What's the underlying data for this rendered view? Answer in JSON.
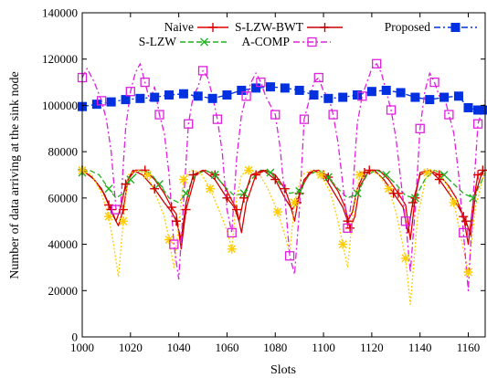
{
  "chart_data": {
    "type": "line",
    "xlabel": "Slots",
    "ylabel": "Number of data arriving at the sink node",
    "xlim": [
      1000,
      1167
    ],
    "ylim": [
      0,
      140000
    ],
    "xticks": [
      1000,
      1020,
      1040,
      1060,
      1080,
      1100,
      1120,
      1140,
      1160
    ],
    "xtick_labels": [
      "1000",
      "1020",
      "1040",
      "1060",
      "1080",
      "1100",
      "1120",
      "1140",
      "1160"
    ],
    "yticks": [
      0,
      20000,
      40000,
      60000,
      80000,
      100000,
      120000,
      140000
    ],
    "ytick_labels": [
      "0",
      "20000",
      "40000",
      "60000",
      "80000",
      "100000",
      "120000",
      "140000"
    ],
    "grid": false,
    "legend_position": "top",
    "series": [
      {
        "name": "Naive",
        "color": "#e00000",
        "marker": "plus",
        "dash": "solid",
        "x": [
          1000,
          1004,
          1008,
          1011,
          1013,
          1015,
          1017,
          1019,
          1022,
          1026,
          1030,
          1034,
          1037,
          1039,
          1041,
          1043,
          1047,
          1051,
          1055,
          1059,
          1062,
          1064,
          1066,
          1068,
          1072,
          1076,
          1080,
          1084,
          1086,
          1088,
          1090,
          1094,
          1098,
          1102,
          1106,
          1109,
          1111,
          1113,
          1115,
          1119,
          1123,
          1127,
          1131,
          1134,
          1136,
          1138,
          1140,
          1144,
          1148,
          1152,
          1155,
          1158,
          1160,
          1162,
          1164,
          1167
        ],
        "y": [
          72000,
          69000,
          64000,
          57000,
          52000,
          48000,
          55000,
          68000,
          72000,
          72000,
          68000,
          62000,
          56000,
          53000,
          38000,
          55000,
          70000,
          72000,
          70000,
          65000,
          59000,
          55000,
          45000,
          58000,
          70000,
          72000,
          70000,
          64000,
          58000,
          50000,
          62000,
          71000,
          72000,
          69000,
          63000,
          56000,
          47000,
          52000,
          65000,
          72000,
          72000,
          68000,
          62000,
          57000,
          42000,
          60000,
          71000,
          72000,
          70000,
          65000,
          60000,
          52000,
          40000,
          58000,
          70000,
          72000
        ]
      },
      {
        "name": "S-LZW",
        "color": "#20b020",
        "marker": "x",
        "dash": "dashed",
        "x": [
          1000,
          1003,
          1007,
          1011,
          1014,
          1017,
          1020,
          1024,
          1028,
          1032,
          1036,
          1040,
          1043,
          1047,
          1051,
          1055,
          1059,
          1063,
          1067,
          1070,
          1074,
          1078,
          1082,
          1086,
          1090,
          1094,
          1098,
          1102,
          1106,
          1110,
          1114,
          1118,
          1122,
          1126,
          1130,
          1134,
          1138,
          1142,
          1146,
          1150,
          1154,
          1158,
          1162,
          1165,
          1167
        ],
        "y": [
          71000,
          72000,
          70000,
          64000,
          60000,
          62000,
          68000,
          72000,
          71000,
          66000,
          60000,
          58000,
          62000,
          70000,
          72000,
          70000,
          65000,
          61000,
          62000,
          68000,
          72000,
          71000,
          66000,
          62000,
          63000,
          70000,
          72000,
          69000,
          64000,
          60000,
          62000,
          70000,
          72000,
          70000,
          66000,
          61000,
          60000,
          68000,
          72000,
          70000,
          66000,
          62000,
          60000,
          66000,
          71000
        ]
      },
      {
        "name": "S-LZW-BWT",
        "color": "#c80000",
        "marker": "plus",
        "dash": "solid",
        "x": [
          1000,
          1005,
          1009,
          1012,
          1014,
          1016,
          1018,
          1021,
          1025,
          1030,
          1034,
          1037,
          1039,
          1041,
          1043,
          1046,
          1050,
          1055,
          1060,
          1063,
          1065,
          1067,
          1070,
          1075,
          1080,
          1084,
          1087,
          1089,
          1092,
          1096,
          1100,
          1104,
          1108,
          1110,
          1112,
          1114,
          1117,
          1121,
          1125,
          1129,
          1133,
          1135,
          1137,
          1140,
          1144,
          1148,
          1152,
          1156,
          1159,
          1161,
          1163,
          1166
        ],
        "y": [
          72000,
          68000,
          62000,
          55000,
          50000,
          56000,
          66000,
          72000,
          70000,
          64000,
          58000,
          54000,
          50000,
          42000,
          58000,
          70000,
          72000,
          68000,
          60000,
          56000,
          50000,
          60000,
          70000,
          72000,
          68000,
          60000,
          55000,
          58000,
          68000,
          72000,
          70000,
          63000,
          56000,
          50000,
          54000,
          64000,
          71000,
          72000,
          68000,
          62000,
          56000,
          45000,
          58000,
          70000,
          72000,
          68000,
          62000,
          56000,
          50000,
          44000,
          62000,
          72000
        ]
      },
      {
        "name": "A-COMP",
        "color": "#ffcc00",
        "marker": "star",
        "dash": "dotted",
        "x": [
          1000,
          1004,
          1008,
          1011,
          1013,
          1015,
          1017,
          1019,
          1023,
          1027,
          1031,
          1034,
          1036,
          1038,
          1040,
          1042,
          1045,
          1049,
          1053,
          1057,
          1060,
          1062,
          1064,
          1066,
          1069,
          1073,
          1077,
          1081,
          1084,
          1086,
          1088,
          1091,
          1095,
          1099,
          1103,
          1106,
          1108,
          1110,
          1112,
          1115,
          1119,
          1123,
          1127,
          1130,
          1132,
          1134,
          1136,
          1139,
          1143,
          1147,
          1151,
          1154,
          1156,
          1158,
          1160,
          1163,
          1167
        ],
        "y": [
          72000,
          70000,
          62000,
          52000,
          40000,
          26000,
          50000,
          70000,
          72000,
          70000,
          60000,
          52000,
          42000,
          30000,
          48000,
          68000,
          72000,
          71000,
          64000,
          54000,
          46000,
          38000,
          60000,
          70000,
          72000,
          71000,
          64000,
          54000,
          44000,
          36000,
          58000,
          70000,
          72000,
          70000,
          62000,
          50000,
          40000,
          30000,
          52000,
          70000,
          72000,
          70000,
          64000,
          54000,
          44000,
          34000,
          14000,
          52000,
          71000,
          72000,
          66000,
          58000,
          48000,
          38000,
          28000,
          56000,
          72000
        ]
      },
      {
        "name": "Proposed",
        "color": "#0030e0",
        "marker": "square",
        "dash": "dashdot",
        "x": [
          1000,
          1006,
          1012,
          1018,
          1024,
          1030,
          1036,
          1042,
          1048,
          1054,
          1060,
          1066,
          1072,
          1078,
          1084,
          1090,
          1096,
          1102,
          1108,
          1114,
          1120,
          1126,
          1132,
          1138,
          1144,
          1150,
          1156,
          1160,
          1164,
          1167
        ],
        "y": [
          99500,
          100500,
          101500,
          102500,
          103000,
          103500,
          104500,
          105000,
          104000,
          103000,
          104500,
          106500,
          107500,
          108000,
          107500,
          106500,
          104500,
          103000,
          103500,
          104500,
          106000,
          106500,
          105500,
          103500,
          102500,
          103500,
          104000,
          99000,
          98000,
          98000
        ]
      },
      {
        "name": "",
        "color": "#e020e0",
        "marker": "square-open",
        "dash": "dashdot",
        "x": [
          1000,
          1002,
          1005,
          1008,
          1010,
          1012,
          1014,
          1016,
          1018,
          1020,
          1022,
          1024,
          1026,
          1028,
          1030,
          1032,
          1034,
          1036,
          1038,
          1040,
          1042,
          1044,
          1046,
          1048,
          1050,
          1052,
          1054,
          1056,
          1058,
          1060,
          1062,
          1064,
          1066,
          1068,
          1070,
          1072,
          1074,
          1076,
          1078,
          1080,
          1082,
          1084,
          1086,
          1088,
          1090,
          1092,
          1094,
          1096,
          1098,
          1100,
          1102,
          1104,
          1106,
          1108,
          1110,
          1112,
          1114,
          1116,
          1118,
          1120,
          1122,
          1124,
          1126,
          1128,
          1130,
          1132,
          1134,
          1136,
          1138,
          1140,
          1142,
          1144,
          1146,
          1148,
          1150,
          1152,
          1154,
          1156,
          1158,
          1160,
          1162,
          1164,
          1167
        ],
        "y": [
          112000,
          116000,
          110000,
          102000,
          94000,
          80000,
          55000,
          58000,
          90000,
          106000,
          114000,
          118000,
          110000,
          102000,
          108000,
          96000,
          88000,
          70000,
          40000,
          25000,
          58000,
          92000,
          104000,
          108000,
          115000,
          112000,
          104000,
          94000,
          80000,
          55000,
          45000,
          77000,
          96000,
          104000,
          110000,
          114000,
          110000,
          104000,
          100000,
          96000,
          82000,
          60000,
          35000,
          27000,
          55000,
          94000,
          102000,
          110000,
          112000,
          106000,
          104000,
          96000,
          84000,
          66000,
          47000,
          62000,
          92000,
          104000,
          110000,
          116000,
          118000,
          114000,
          106000,
          98000,
          86000,
          68000,
          50000,
          28000,
          55000,
          90000,
          106000,
          114000,
          110000,
          104000,
          104000,
          96000,
          88000,
          70000,
          45000,
          20000,
          60000,
          92000,
          102000
        ]
      }
    ]
  },
  "legend": {
    "col1": [
      "Naive",
      "S-LZW"
    ],
    "col2": [
      "S-LZW-BWT",
      "A-COMP"
    ],
    "col3": [
      "Proposed"
    ]
  }
}
